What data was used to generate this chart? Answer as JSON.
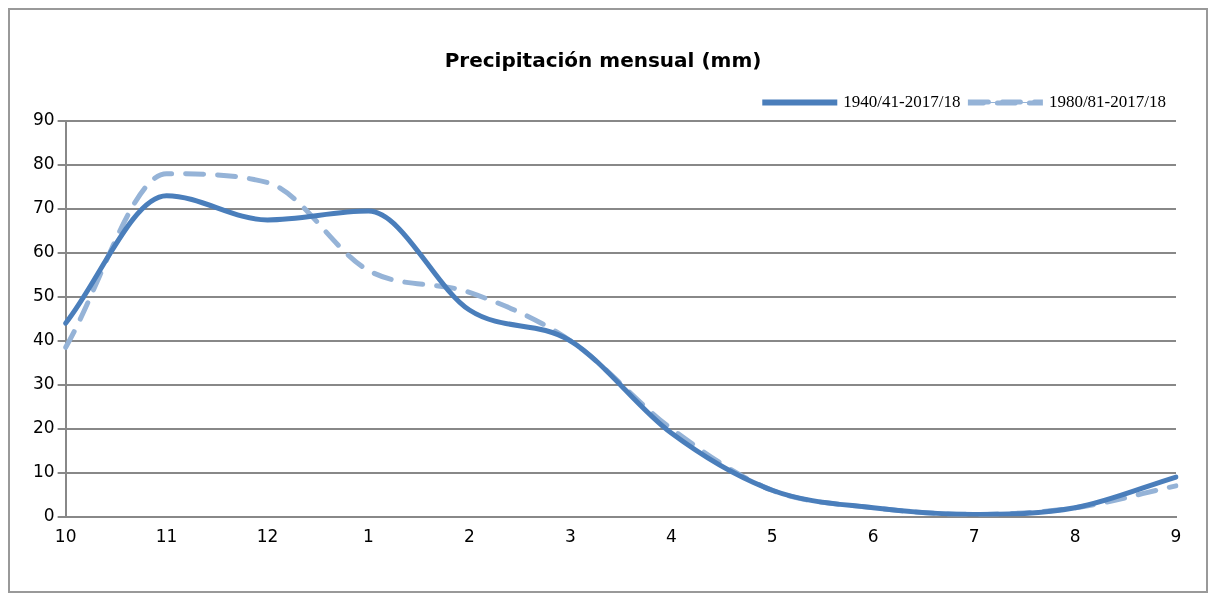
{
  "chart_data": {
    "type": "line",
    "title": "Precipitación mensual (mm)",
    "categories": [
      "10",
      "11",
      "12",
      "1",
      "2",
      "3",
      "4",
      "5",
      "6",
      "7",
      "8",
      "9"
    ],
    "series": [
      {
        "name": "1940/41-2017/18",
        "color": "#4a7ebb",
        "line_style": "solid",
        "values": [
          44,
          73,
          67.5,
          69.5,
          47,
          40,
          19,
          6,
          2,
          0.5,
          2,
          9
        ]
      },
      {
        "name": "1980/81-2017/18",
        "color": "#95b3d7",
        "line_style": "dashed",
        "values": [
          38.5,
          78,
          76,
          56,
          51,
          40,
          20,
          6,
          2,
          0.5,
          2,
          7
        ]
      }
    ],
    "ylim": [
      0,
      90
    ],
    "yticks": [
      0,
      10,
      20,
      30,
      40,
      50,
      60,
      70,
      80,
      90
    ],
    "grid": "y",
    "legend": "top right",
    "marker": "none"
  }
}
